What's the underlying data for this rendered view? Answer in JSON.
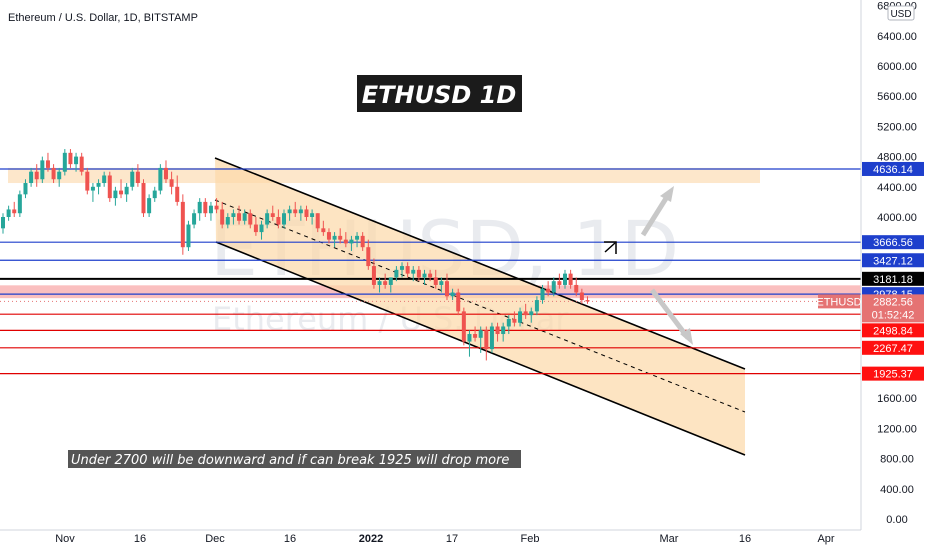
{
  "header": {
    "title": "Ethereum / U.S. Dollar, 1D, BITSTAMP"
  },
  "watermark": {
    "line1": "ETHUSD, 1D",
    "line2": "Ethereum / U.S. Dollar"
  },
  "currency_button": "USD",
  "annotations": {
    "banner": "ETHUSD 1D",
    "note": "Under 2700 will be downward and if can break 1925 will drop more"
  },
  "price_tag": {
    "symbol": "ETHUSD",
    "price": "2882.56",
    "countdown": "01:52:42",
    "color": "#e57373"
  },
  "chart_data": {
    "type": "candlestick",
    "title": "Ethereum / U.S. Dollar, 1D, BITSTAMP",
    "x_ticks": [
      "Nov",
      "16",
      "Dec",
      "16",
      "2022",
      "17",
      "Feb",
      "Mar",
      "16",
      "Apr"
    ],
    "y_ticks": [
      "0.00",
      "400.00",
      "800.00",
      "1200.00",
      "1600.00",
      "4000.00",
      "4400.00",
      "4800.00",
      "5200.00",
      "5600.00",
      "6000.00",
      "6400.00",
      "6800.00"
    ],
    "ylim": [
      0,
      6900
    ],
    "series": [
      {
        "ohlc": [
          [
            3850,
            4050,
            3780,
            4000
          ],
          [
            4000,
            4150,
            3950,
            4100
          ],
          [
            4100,
            4200,
            4000,
            4050
          ],
          [
            4050,
            4350,
            4000,
            4300
          ],
          [
            4300,
            4500,
            4250,
            4450
          ],
          [
            4450,
            4650,
            4400,
            4600
          ],
          [
            4600,
            4700,
            4400,
            4500
          ],
          [
            4500,
            4800,
            4450,
            4750
          ],
          [
            4750,
            4850,
            4600,
            4650
          ],
          [
            4650,
            4700,
            4450,
            4500
          ],
          [
            4500,
            4650,
            4400,
            4600
          ],
          [
            4600,
            4900,
            4550,
            4850
          ],
          [
            4850,
            4900,
            4650,
            4700
          ],
          [
            4700,
            4850,
            4600,
            4800
          ],
          [
            4800,
            4850,
            4550,
            4600
          ],
          [
            4600,
            4650,
            4300,
            4350
          ],
          [
            4350,
            4450,
            4200,
            4400
          ],
          [
            4400,
            4500,
            4300,
            4450
          ],
          [
            4450,
            4600,
            4400,
            4550
          ],
          [
            4550,
            4600,
            4200,
            4250
          ],
          [
            4250,
            4400,
            4150,
            4350
          ],
          [
            4350,
            4500,
            4250,
            4300
          ],
          [
            4300,
            4450,
            4200,
            4400
          ],
          [
            4400,
            4650,
            4350,
            4600
          ],
          [
            4600,
            4700,
            4400,
            4450
          ],
          [
            4450,
            4500,
            4000,
            4050
          ],
          [
            4050,
            4300,
            4000,
            4250
          ],
          [
            4250,
            4400,
            4200,
            4350
          ],
          [
            4350,
            4700,
            4300,
            4650
          ],
          [
            4650,
            4750,
            4450,
            4500
          ],
          [
            4500,
            4600,
            4300,
            4400
          ],
          [
            4400,
            4550,
            4150,
            4200
          ],
          [
            4200,
            4300,
            3500,
            3600
          ],
          [
            3600,
            3950,
            3550,
            3900
          ],
          [
            3900,
            4100,
            3850,
            4050
          ],
          [
            4050,
            4250,
            3950,
            4200
          ],
          [
            4200,
            4250,
            4000,
            4050
          ],
          [
            4050,
            4200,
            3950,
            4150
          ],
          [
            4150,
            4250,
            4050,
            4100
          ],
          [
            4100,
            4200,
            3850,
            3900
          ],
          [
            3900,
            4050,
            3850,
            4000
          ],
          [
            4000,
            4100,
            3900,
            4050
          ],
          [
            4050,
            4150,
            3900,
            3950
          ],
          [
            3950,
            4100,
            3900,
            4050
          ],
          [
            4050,
            4100,
            3850,
            3900
          ],
          [
            3900,
            4000,
            3750,
            3800
          ],
          [
            3800,
            3950,
            3700,
            3900
          ],
          [
            3900,
            4100,
            3850,
            4050
          ],
          [
            4050,
            4150,
            3950,
            4000
          ],
          [
            4000,
            4100,
            3850,
            3900
          ],
          [
            3900,
            4100,
            3850,
            4050
          ],
          [
            4050,
            4150,
            3950,
            4100
          ],
          [
            4100,
            4200,
            4000,
            4050
          ],
          [
            4050,
            4150,
            3950,
            4100
          ],
          [
            4100,
            4150,
            3950,
            4000
          ],
          [
            4000,
            4100,
            3900,
            4050
          ],
          [
            4050,
            4050,
            3800,
            3850
          ],
          [
            3850,
            3950,
            3750,
            3800
          ],
          [
            3800,
            3850,
            3650,
            3700
          ],
          [
            3700,
            3800,
            3600,
            3750
          ],
          [
            3750,
            3850,
            3650,
            3700
          ],
          [
            3700,
            3800,
            3600,
            3650
          ],
          [
            3650,
            3750,
            3550,
            3700
          ],
          [
            3700,
            3800,
            3600,
            3750
          ],
          [
            3750,
            3800,
            3550,
            3600
          ],
          [
            3600,
            3700,
            3300,
            3350
          ],
          [
            3350,
            3450,
            3050,
            3100
          ],
          [
            3100,
            3200,
            3000,
            3150
          ],
          [
            3150,
            3250,
            3050,
            3100
          ],
          [
            3100,
            3200,
            3000,
            3200
          ],
          [
            3200,
            3350,
            3150,
            3300
          ],
          [
            3300,
            3400,
            3200,
            3350
          ],
          [
            3350,
            3400,
            3200,
            3250
          ],
          [
            3250,
            3350,
            3150,
            3300
          ],
          [
            3300,
            3350,
            3150,
            3200
          ],
          [
            3200,
            3300,
            3100,
            3250
          ],
          [
            3250,
            3300,
            3150,
            3200
          ],
          [
            3200,
            3300,
            3050,
            3100
          ],
          [
            3100,
            3200,
            3000,
            3150
          ],
          [
            3150,
            3250,
            2900,
            2950
          ],
          [
            2950,
            3050,
            2900,
            3000
          ],
          [
            3000,
            3050,
            2700,
            2750
          ],
          [
            2750,
            2800,
            2300,
            2350
          ],
          [
            2350,
            2500,
            2150,
            2450
          ],
          [
            2450,
            2550,
            2350,
            2400
          ],
          [
            2400,
            2550,
            2200,
            2500
          ],
          [
            2500,
            2550,
            2100,
            2250
          ],
          [
            2250,
            2600,
            2200,
            2550
          ],
          [
            2550,
            2600,
            2350,
            2450
          ],
          [
            2450,
            2600,
            2350,
            2550
          ],
          [
            2550,
            2700,
            2450,
            2650
          ],
          [
            2650,
            2750,
            2550,
            2600
          ],
          [
            2600,
            2800,
            2550,
            2750
          ],
          [
            2750,
            2850,
            2650,
            2700
          ],
          [
            2700,
            2800,
            2600,
            2750
          ],
          [
            2750,
            2950,
            2700,
            2900
          ],
          [
            2900,
            3100,
            2850,
            3050
          ],
          [
            3050,
            3150,
            2950,
            3000
          ],
          [
            3000,
            3200,
            2950,
            3150
          ],
          [
            3150,
            3250,
            3050,
            3100
          ],
          [
            3100,
            3300,
            3050,
            3250
          ],
          [
            3250,
            3300,
            3050,
            3100
          ],
          [
            3100,
            3200,
            2950,
            3000
          ],
          [
            3000,
            3050,
            2850,
            2900
          ],
          [
            2900,
            2950,
            2850,
            2882.56
          ]
        ]
      }
    ],
    "horizontal_levels": [
      {
        "price": 4636.14,
        "label": "4636.14",
        "color": "#1e3fcc"
      },
      {
        "price": 3666.56,
        "label": "3666.56",
        "color": "#1e3fcc"
      },
      {
        "price": 3427.12,
        "label": "3427.12",
        "color": "#1e3fcc"
      },
      {
        "price": 3181.18,
        "label": "3181.18",
        "color": "#000000"
      },
      {
        "price": 2978.15,
        "label": "2978.15",
        "color": "#1e3fcc"
      },
      {
        "price": 2712.45,
        "label": "2712.45",
        "color": "#e00000"
      },
      {
        "price": 2498.84,
        "label": "2498.84",
        "color": "#e00000"
      },
      {
        "price": 2267.47,
        "label": "2267.47",
        "color": "#e00000"
      },
      {
        "price": 1925.37,
        "label": "1925.37",
        "color": "#e00000"
      }
    ],
    "zones": [
      {
        "from": 4450,
        "to": 4650,
        "color": "#fde3c2"
      },
      {
        "from": 2925,
        "to": 3095,
        "color": "#f9b4b4"
      }
    ],
    "grid": false,
    "colors": {
      "up": "#26a69a",
      "down": "#ef5350",
      "channel_fill": "#fcd9a8"
    }
  }
}
